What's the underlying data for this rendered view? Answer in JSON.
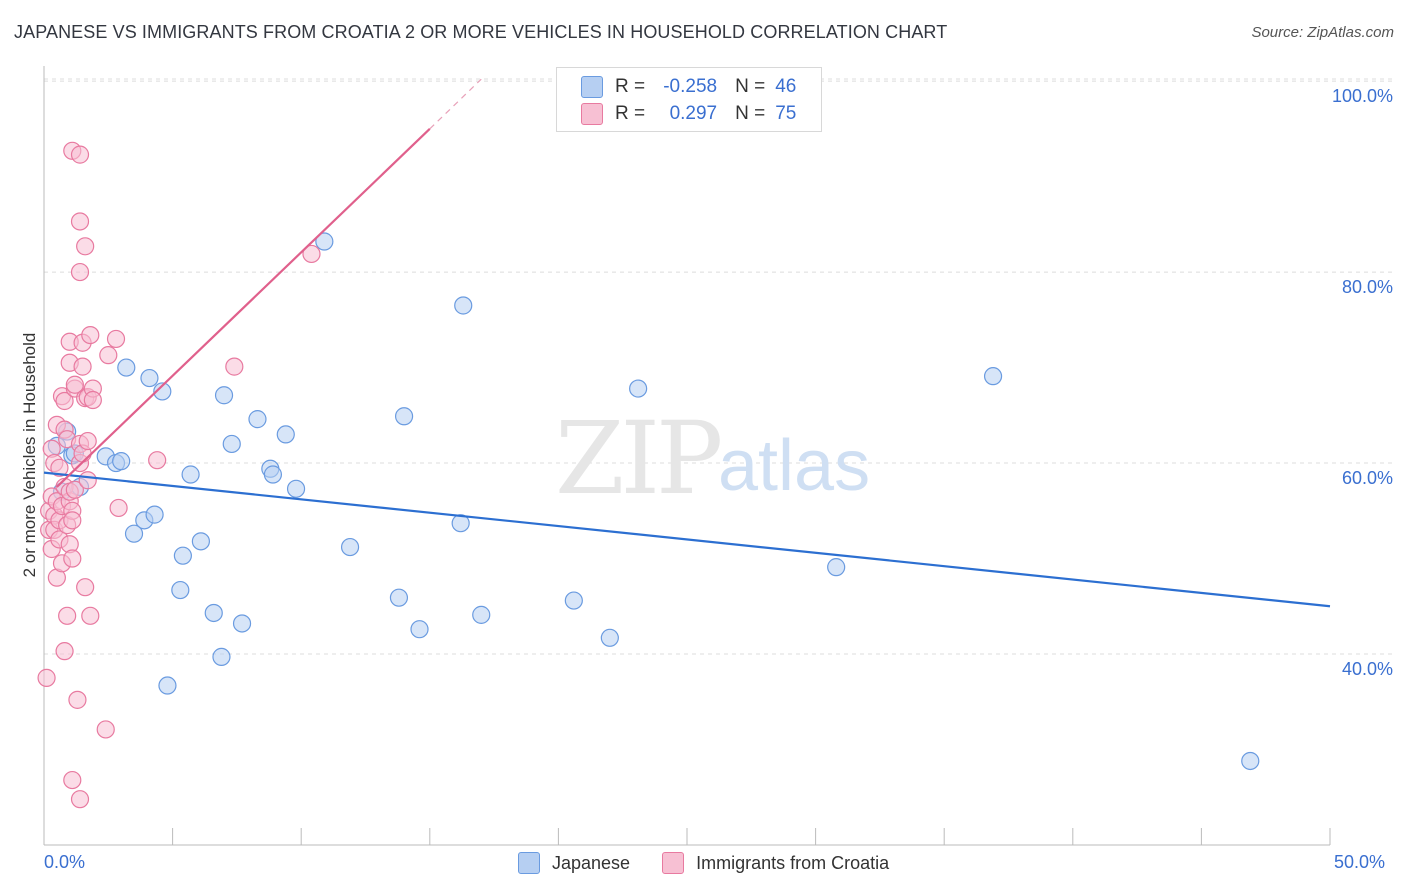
{
  "title": "JAPANESE VS IMMIGRANTS FROM CROATIA 2 OR MORE VEHICLES IN HOUSEHOLD CORRELATION CHART",
  "source": "Source: ZipAtlas.com",
  "watermark": {
    "zip": "ZIP",
    "atlas": "atlas"
  },
  "legend": {
    "rows": [
      {
        "r_label": "R =",
        "r_value": "-0.258",
        "n_label": "N =",
        "n_value": "46"
      },
      {
        "r_label": "R =",
        "r_value": "0.297",
        "n_label": "N =",
        "n_value": "75"
      }
    ]
  },
  "chart_data": {
    "type": "scatter",
    "title": "JAPANESE VS IMMIGRANTS FROM CROATIA 2 OR MORE VEHICLES IN HOUSEHOLD CORRELATION CHART",
    "xlabel": "",
    "ylabel": "2 or more Vehicles in Household",
    "xlim": [
      0,
      50
    ],
    "ylim": [
      20,
      102
    ],
    "x_tick_labels": [
      "0.0%",
      "50.0%"
    ],
    "y_ticks": [
      40,
      60,
      80,
      100
    ],
    "y_tick_labels": [
      "40.0%",
      "60.0%",
      "80.0%",
      "100.0%"
    ],
    "series": [
      {
        "name": "Japanese",
        "color": "#6a9be0",
        "fill": "#b6cff2",
        "trend": {
          "x": [
            0,
            50
          ],
          "y": [
            59.0,
            45.0
          ]
        },
        "points": [
          [
            0.5,
            61.8
          ],
          [
            0.7,
            57.0
          ],
          [
            0.9,
            63.3
          ],
          [
            1.1,
            60.8
          ],
          [
            1.2,
            61.0
          ],
          [
            1.4,
            57.5
          ],
          [
            2.4,
            60.7
          ],
          [
            2.8,
            60.0
          ],
          [
            3.0,
            60.2
          ],
          [
            3.2,
            70.0
          ],
          [
            3.5,
            52.6
          ],
          [
            3.9,
            54.0
          ],
          [
            4.1,
            68.9
          ],
          [
            4.3,
            54.6
          ],
          [
            4.6,
            67.5
          ],
          [
            4.8,
            36.7
          ],
          [
            5.3,
            46.7
          ],
          [
            5.4,
            50.3
          ],
          [
            5.7,
            58.8
          ],
          [
            6.1,
            51.8
          ],
          [
            6.6,
            44.3
          ],
          [
            6.9,
            39.7
          ],
          [
            7.0,
            67.1
          ],
          [
            7.3,
            62.0
          ],
          [
            7.7,
            43.2
          ],
          [
            8.3,
            64.6
          ],
          [
            8.8,
            59.4
          ],
          [
            8.9,
            58.8
          ],
          [
            9.4,
            63.0
          ],
          [
            9.8,
            57.3
          ],
          [
            10.9,
            83.2
          ],
          [
            11.9,
            51.2
          ],
          [
            13.8,
            45.9
          ],
          [
            14.0,
            64.9
          ],
          [
            14.6,
            42.6
          ],
          [
            16.2,
            53.7
          ],
          [
            16.3,
            76.5
          ],
          [
            17.0,
            44.1
          ],
          [
            20.6,
            45.6
          ],
          [
            22.0,
            41.7
          ],
          [
            23.1,
            67.8
          ],
          [
            30.8,
            49.1
          ],
          [
            36.9,
            69.1
          ],
          [
            46.9,
            28.8
          ]
        ]
      },
      {
        "name": "Immigrants from Croatia",
        "color": "#e87aa0",
        "fill": "#f7c0d3",
        "trend": {
          "x": [
            0.5,
            15.0
          ],
          "y": [
            57.5,
            95.0
          ]
        },
        "trend_dash": {
          "x": [
            15.0,
            17.0
          ],
          "y": [
            95.0,
            100.2
          ]
        },
        "points": [
          [
            0.1,
            37.5
          ],
          [
            0.2,
            53.0
          ],
          [
            0.2,
            55.0
          ],
          [
            0.3,
            56.5
          ],
          [
            0.3,
            51.0
          ],
          [
            0.3,
            61.5
          ],
          [
            0.4,
            60.0
          ],
          [
            0.4,
            54.5
          ],
          [
            0.4,
            53.0
          ],
          [
            0.5,
            64.0
          ],
          [
            0.5,
            48.0
          ],
          [
            0.5,
            56.0
          ],
          [
            0.6,
            59.5
          ],
          [
            0.6,
            52.0
          ],
          [
            0.6,
            54.0
          ],
          [
            0.7,
            67.0
          ],
          [
            0.7,
            55.5
          ],
          [
            0.7,
            49.5
          ],
          [
            0.8,
            57.5
          ],
          [
            0.8,
            40.3
          ],
          [
            0.8,
            66.5
          ],
          [
            0.8,
            63.5
          ],
          [
            0.9,
            62.5
          ],
          [
            0.9,
            53.5
          ],
          [
            0.9,
            44.0
          ],
          [
            1.0,
            70.5
          ],
          [
            1.0,
            72.7
          ],
          [
            1.0,
            56.0
          ],
          [
            1.0,
            51.5
          ],
          [
            1.0,
            57.0
          ],
          [
            1.1,
            55.0
          ],
          [
            1.1,
            54.0
          ],
          [
            1.1,
            50.0
          ],
          [
            1.1,
            92.7
          ],
          [
            1.1,
            26.8
          ],
          [
            1.2,
            67.8
          ],
          [
            1.2,
            68.2
          ],
          [
            1.2,
            57.2
          ],
          [
            1.3,
            35.2
          ],
          [
            1.4,
            92.3
          ],
          [
            1.4,
            60.0
          ],
          [
            1.4,
            24.8
          ],
          [
            1.4,
            80.0
          ],
          [
            1.4,
            85.3
          ],
          [
            1.4,
            62.0
          ],
          [
            1.5,
            72.6
          ],
          [
            1.5,
            70.1
          ],
          [
            1.5,
            61.0
          ],
          [
            1.6,
            82.7
          ],
          [
            1.6,
            66.8
          ],
          [
            1.6,
            47.0
          ],
          [
            1.7,
            66.9
          ],
          [
            1.7,
            62.3
          ],
          [
            1.7,
            58.2
          ],
          [
            1.8,
            73.4
          ],
          [
            1.8,
            44.0
          ],
          [
            1.9,
            67.8
          ],
          [
            1.9,
            66.6
          ],
          [
            2.4,
            32.1
          ],
          [
            2.5,
            71.3
          ],
          [
            2.8,
            73.0
          ],
          [
            2.9,
            55.3
          ],
          [
            4.4,
            60.3
          ],
          [
            7.4,
            70.1
          ],
          [
            10.4,
            81.9
          ]
        ]
      }
    ],
    "legend_position": "top-center"
  },
  "bottom_legend": [
    "Japanese",
    "Immigrants from Croatia"
  ]
}
